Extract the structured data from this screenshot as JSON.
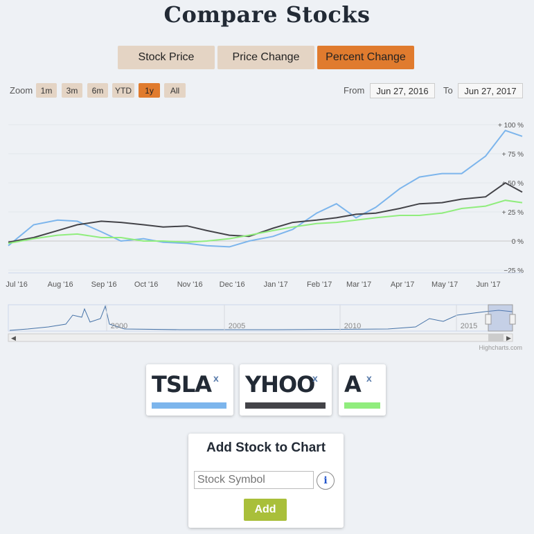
{
  "page": {
    "title": "Compare Stocks"
  },
  "modes": [
    {
      "label": "Stock Price",
      "active": false
    },
    {
      "label": "Price Change",
      "active": false
    },
    {
      "label": "Percent Change",
      "active": true
    }
  ],
  "zoom": {
    "label": "Zoom",
    "buttons": [
      {
        "label": "1m",
        "active": false
      },
      {
        "label": "3m",
        "active": false
      },
      {
        "label": "6m",
        "active": false
      },
      {
        "label": "YTD",
        "active": false
      },
      {
        "label": "1y",
        "active": true
      },
      {
        "label": "All",
        "active": false
      }
    ]
  },
  "range": {
    "from_label": "From",
    "from_value": "Jun 27, 2016",
    "to_label": "To",
    "to_value": "Jun 27, 2017"
  },
  "colors": {
    "accent": "#e07b2e",
    "button_bg": "#e4d4c4",
    "add_green": "#a9bf3a",
    "title": "#222a35"
  },
  "chart_data": {
    "type": "line",
    "y_unit": "percent",
    "yticks": [
      "+ 100 %",
      "+ 75 %",
      "+ 50 %",
      "+ 25 %",
      "0 %",
      "−25 %"
    ],
    "ytick_values": [
      100,
      75,
      50,
      25,
      0,
      -25
    ],
    "ylim": [
      -25,
      100
    ],
    "xticks": [
      "Jul '16",
      "Aug '16",
      "Sep '16",
      "Oct '16",
      "Nov '16",
      "Dec '16",
      "Jan '17",
      "Feb '17",
      "Mar '17",
      "Apr '17",
      "May '17",
      "Jun '17"
    ],
    "x_range": [
      "2016-06-27",
      "2017-06-27"
    ],
    "legend": "none",
    "grid": true,
    "series": [
      {
        "name": "TSLA",
        "color": "#7cb5ec",
        "x": [
          "2016-06-27",
          "2016-07-15",
          "2016-08-01",
          "2016-08-15",
          "2016-09-01",
          "2016-09-15",
          "2016-10-01",
          "2016-10-15",
          "2016-11-01",
          "2016-11-15",
          "2016-12-01",
          "2016-12-15",
          "2017-01-01",
          "2017-01-15",
          "2017-02-01",
          "2017-02-15",
          "2017-03-01",
          "2017-03-15",
          "2017-04-01",
          "2017-04-15",
          "2017-05-01",
          "2017-05-15",
          "2017-06-01",
          "2017-06-15",
          "2017-06-27"
        ],
        "values": [
          -4,
          14,
          18,
          17,
          8,
          0,
          2,
          -1,
          -2,
          -4,
          -5,
          0,
          4,
          10,
          24,
          32,
          20,
          29,
          45,
          55,
          58,
          58,
          73,
          95,
          90
        ]
      },
      {
        "name": "YHOO",
        "color": "#434348",
        "x": [
          "2016-06-27",
          "2016-07-15",
          "2016-08-01",
          "2016-08-15",
          "2016-09-01",
          "2016-09-15",
          "2016-10-01",
          "2016-10-15",
          "2016-11-01",
          "2016-11-15",
          "2016-12-01",
          "2016-12-15",
          "2017-01-01",
          "2017-01-15",
          "2017-02-01",
          "2017-02-15",
          "2017-03-01",
          "2017-03-15",
          "2017-04-01",
          "2017-04-15",
          "2017-05-01",
          "2017-05-15",
          "2017-06-01",
          "2017-06-15",
          "2017-06-27"
        ],
        "values": [
          -1,
          3,
          9,
          14,
          17,
          16,
          14,
          12,
          13,
          9,
          5,
          4,
          11,
          16,
          18,
          20,
          23,
          24,
          28,
          32,
          33,
          36,
          38,
          50,
          42
        ]
      },
      {
        "name": "A",
        "color": "#90ed7d",
        "x": [
          "2016-06-27",
          "2016-07-15",
          "2016-08-01",
          "2016-08-15",
          "2016-09-01",
          "2016-09-15",
          "2016-10-01",
          "2016-10-15",
          "2016-11-01",
          "2016-11-15",
          "2016-12-01",
          "2016-12-15",
          "2017-01-01",
          "2017-01-15",
          "2017-02-01",
          "2017-02-15",
          "2017-03-01",
          "2017-03-15",
          "2017-04-01",
          "2017-04-15",
          "2017-05-01",
          "2017-05-15",
          "2017-06-01",
          "2017-06-15",
          "2017-06-27"
        ],
        "values": [
          -2,
          2,
          5,
          6,
          3,
          3,
          0,
          0,
          -1,
          0,
          2,
          5,
          9,
          12,
          15,
          16,
          18,
          20,
          22,
          22,
          24,
          28,
          30,
          35,
          33
        ]
      }
    ]
  },
  "navigator": {
    "labels": [
      "2000",
      "2005",
      "2010",
      "2015"
    ]
  },
  "credit": "Highcharts.com",
  "tickers": [
    {
      "symbol": "TSLA",
      "remove": "x",
      "color": "#7cb5ec"
    },
    {
      "symbol": "YHOO",
      "remove": "x",
      "color": "#434348"
    },
    {
      "symbol": "A",
      "remove": "x",
      "color": "#90ed7d"
    }
  ],
  "add_panel": {
    "title": "Add Stock to Chart",
    "placeholder": "Stock Symbol",
    "info_icon": "i",
    "add_label": "Add"
  }
}
